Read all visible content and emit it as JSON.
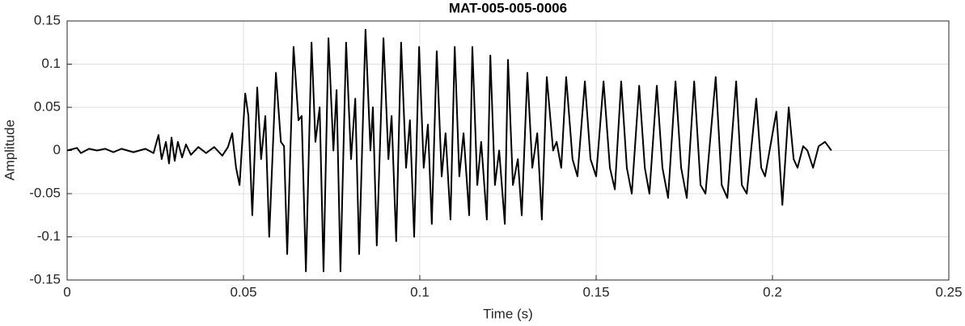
{
  "chart_data": {
    "type": "line",
    "title": "MAT-005-005-0006",
    "x_label": "Time (s)",
    "y_label": "Amplitude",
    "color": "#000000",
    "grid": true,
    "xlim": [
      0,
      0.25
    ],
    "xticks": [
      0,
      0.05,
      0.1,
      0.15,
      0.2,
      0.25
    ],
    "ylim": [
      -0.15,
      0.15
    ],
    "yticks": [
      -0.15,
      -0.1,
      -0.05,
      0,
      0.05,
      0.1,
      0.15
    ],
    "x": [
      0,
      0.0028,
      0.0039,
      0.0062,
      0.0085,
      0.0108,
      0.0131,
      0.0154,
      0.0188,
      0.0222,
      0.0245,
      0.0259,
      0.0268,
      0.028,
      0.0289,
      0.0296,
      0.0305,
      0.0314,
      0.0326,
      0.0337,
      0.0351,
      0.0372,
      0.0394,
      0.0417,
      0.044,
      0.0456,
      0.0468,
      0.0479,
      0.0489,
      0.0505,
      0.0514,
      0.0525,
      0.0539,
      0.055,
      0.0562,
      0.0573,
      0.0592,
      0.0606,
      0.0615,
      0.0624,
      0.0642,
      0.0656,
      0.0665,
      0.0677,
      0.0693,
      0.0704,
      0.0716,
      0.0727,
      0.0741,
      0.0755,
      0.0764,
      0.0775,
      0.0791,
      0.0805,
      0.0817,
      0.0828,
      0.0846,
      0.086,
      0.0867,
      0.0878,
      0.0897,
      0.0911,
      0.092,
      0.0933,
      0.0947,
      0.0961,
      0.0972,
      0.0984,
      0.0998,
      0.1011,
      0.1023,
      0.1034,
      0.1048,
      0.1062,
      0.1073,
      0.1087,
      0.1099,
      0.1112,
      0.1124,
      0.114,
      0.1149,
      0.1163,
      0.1174,
      0.119,
      0.12,
      0.1213,
      0.1225,
      0.1241,
      0.125,
      0.1264,
      0.1278,
      0.1289,
      0.1305,
      0.1319,
      0.1333,
      0.1346,
      0.136,
      0.1378,
      0.1388,
      0.1401,
      0.1415,
      0.1433,
      0.1447,
      0.1468,
      0.1484,
      0.15,
      0.1521,
      0.1539,
      0.1553,
      0.1571,
      0.1587,
      0.1601,
      0.1622,
      0.1638,
      0.1651,
      0.1672,
      0.1688,
      0.1704,
      0.1725,
      0.1741,
      0.1757,
      0.1778,
      0.1796,
      0.181,
      0.1839,
      0.1856,
      0.1872,
      0.1897,
      0.1913,
      0.1927,
      0.1954,
      0.1968,
      0.1979,
      0.2011,
      0.2028,
      0.2046,
      0.206,
      0.2071,
      0.2087,
      0.2099,
      0.2115,
      0.2131,
      0.2149,
      0.2167
    ],
    "values": [
      0,
      0.003,
      -0.003,
      0.002,
      0,
      0.002,
      -0.002,
      0.002,
      -0.002,
      0.002,
      -0.003,
      0.018,
      -0.01,
      0.01,
      -0.015,
      0.015,
      -0.012,
      0.01,
      -0.008,
      0.007,
      -0.005,
      0.004,
      -0.003,
      0.004,
      -0.006,
      0.004,
      0.02,
      -0.02,
      -0.04,
      0.066,
      0.04,
      -0.075,
      0.073,
      -0.01,
      0.04,
      -0.1,
      0.09,
      0.01,
      0.005,
      -0.12,
      0.12,
      0.035,
      0.04,
      -0.14,
      0.125,
      0.01,
      0.05,
      -0.14,
      0.13,
      0,
      0.07,
      -0.14,
      0.125,
      -0.01,
      0.06,
      -0.12,
      0.14,
      0,
      0.05,
      -0.11,
      0.13,
      -0.01,
      0.04,
      -0.105,
      0.125,
      -0.02,
      0.035,
      -0.1,
      0.12,
      -0.02,
      0.03,
      -0.085,
      0.115,
      -0.03,
      0.02,
      -0.08,
      0.12,
      -0.03,
      0.02,
      -0.075,
      0.12,
      -0.04,
      0.01,
      -0.08,
      0.11,
      -0.04,
      0,
      -0.085,
      0.105,
      -0.04,
      -0.01,
      -0.075,
      0.09,
      -0.02,
      0.02,
      -0.08,
      0.085,
      0,
      0.01,
      -0.02,
      0.085,
      -0.01,
      -0.03,
      0.08,
      -0.01,
      -0.03,
      0.08,
      -0.02,
      -0.045,
      0.08,
      -0.02,
      -0.05,
      0.075,
      -0.02,
      -0.05,
      0.075,
      -0.02,
      -0.055,
      0.08,
      -0.02,
      -0.055,
      0.08,
      -0.04,
      -0.05,
      0.085,
      -0.04,
      -0.055,
      0.08,
      -0.04,
      -0.05,
      0.06,
      -0.02,
      -0.03,
      0.045,
      -0.063,
      0.05,
      -0.01,
      -0.02,
      0.005,
      0,
      -0.02,
      0.005,
      0.01,
      0
    ]
  }
}
